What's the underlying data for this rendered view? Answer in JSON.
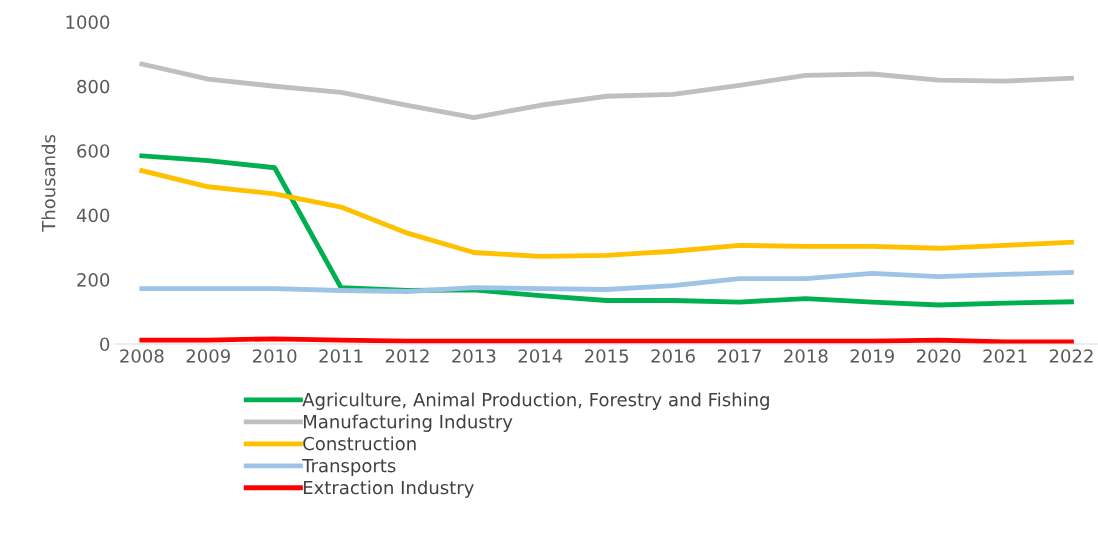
{
  "chart_data": {
    "type": "line",
    "ylabel": "Thousands",
    "categories": [
      "2008",
      "2009",
      "2010",
      "2011",
      "2012",
      "2013",
      "2014",
      "2015",
      "2016",
      "2017",
      "2018",
      "2019",
      "2020",
      "2021",
      "2022"
    ],
    "series": [
      {
        "name": "Agriculture, Animal Production, Forestry and Fishing",
        "color": "#00b050",
        "values": [
          584,
          569,
          547,
          175,
          166,
          168,
          150,
          135,
          135,
          130,
          141,
          130,
          121,
          127,
          131
        ]
      },
      {
        "name": "Manufacturing Industry",
        "color": "#bfbfbf",
        "values": [
          869,
          822,
          800,
          781,
          741,
          703,
          741,
          769,
          775,
          803,
          834,
          838,
          819,
          816,
          825
        ]
      },
      {
        "name": "Construction",
        "color": "#ffc000",
        "values": [
          538,
          488,
          466,
          425,
          344,
          284,
          272,
          275,
          288,
          306,
          303,
          303,
          297,
          306,
          316
        ]
      },
      {
        "name": "Transports",
        "color": "#9dc3e6",
        "values": [
          172,
          172,
          172,
          166,
          163,
          175,
          172,
          169,
          181,
          203,
          203,
          219,
          209,
          216,
          222
        ]
      },
      {
        "name": "Extraction Industry",
        "color": "#ff0000",
        "values": [
          12,
          12,
          16,
          12,
          9,
          9,
          9,
          9,
          9,
          9,
          9,
          9,
          12,
          6,
          6
        ]
      }
    ],
    "ylim": [
      0,
      1000
    ],
    "yticks": [
      0,
      200,
      400,
      600,
      800,
      1000
    ],
    "grid": false,
    "legend": "bottom",
    "marker": "none",
    "line_style": "solid"
  }
}
